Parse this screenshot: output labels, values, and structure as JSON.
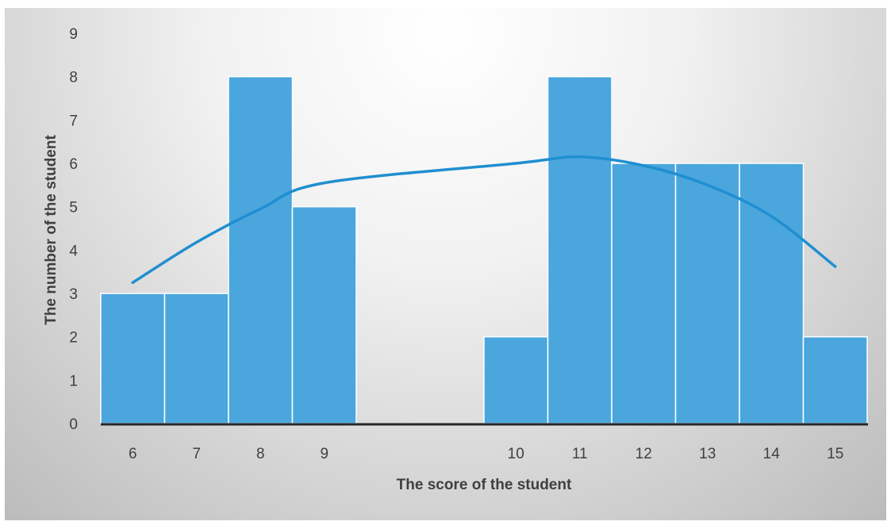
{
  "chart_data": {
    "type": "bar",
    "xlabel": "The score of the student",
    "ylabel": "The number of the student",
    "ylim": [
      0,
      9
    ],
    "yticks": [
      0,
      1,
      2,
      3,
      4,
      5,
      6,
      7,
      8,
      9
    ],
    "xlim": [
      5.5,
      15.5
    ],
    "bin_width": 1,
    "grid": false,
    "legend": "none",
    "bars": [
      {
        "x": 6,
        "value": 3
      },
      {
        "x": 7,
        "value": 3
      },
      {
        "x": 8,
        "value": 8
      },
      {
        "x": 9,
        "value": 5
      },
      {
        "x": 10,
        "value": 2
      },
      {
        "x": 11,
        "value": 8
      },
      {
        "x": 12,
        "value": 6
      },
      {
        "x": 13,
        "value": 6
      },
      {
        "x": 14,
        "value": 6
      },
      {
        "x": 15,
        "value": 2
      }
    ],
    "curve": {
      "type": "line",
      "smooth": true,
      "x": [
        6,
        7,
        8,
        9,
        10,
        11,
        12,
        13,
        14,
        15
      ],
      "values": [
        3.25,
        4.18,
        4.95,
        5.55,
        6.0,
        6.15,
        5.95,
        5.5,
        4.78,
        3.62
      ]
    },
    "colors": {
      "bar": "#4aa6dd",
      "bar_edge": "#ffffff",
      "curve": "#1f8fd0",
      "axis": "#262626",
      "text": "#404040"
    }
  }
}
